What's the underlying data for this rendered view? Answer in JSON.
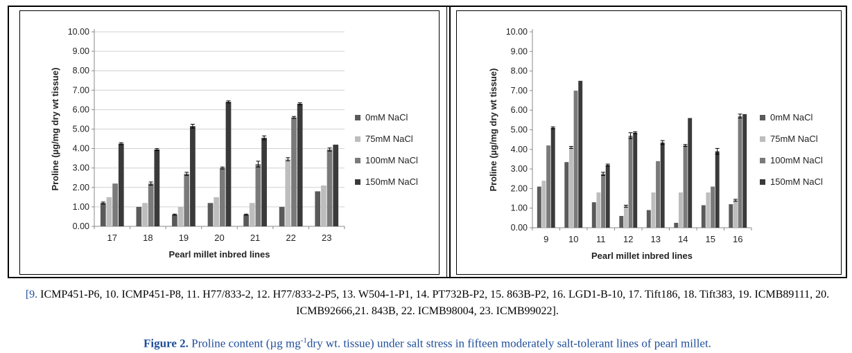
{
  "colors": {
    "s0": "#5a5a5a",
    "s75": "#bdbdbd",
    "s100": "#7a7a7a",
    "s150": "#3a3a3a",
    "axis_text": "#222222",
    "grid": "#d0d0d0",
    "caption_blue": "#1f4e9a"
  },
  "chart_data": [
    {
      "type": "bar",
      "categories": [
        "17",
        "18",
        "19",
        "20",
        "21",
        "22",
        "23"
      ],
      "ylabel": "Proline (µg/mg dry wt tissue)",
      "xlabel": "Pearl millet inbred lines",
      "ylim": [
        0,
        10
      ],
      "yticks": [
        "0.00",
        "1.00",
        "2.00",
        "3.00",
        "4.00",
        "5.00",
        "6.00",
        "7.00",
        "8.00",
        "9.00",
        "10.00"
      ],
      "grid": true,
      "legend_position": "right",
      "series": [
        {
          "name": "0mM NaCl",
          "values": [
            1.2,
            1.0,
            0.6,
            1.2,
            0.6,
            1.0,
            1.8
          ],
          "errors": [
            0.05,
            0,
            0.03,
            0,
            0.03,
            0,
            0
          ]
        },
        {
          "name": "75mM NaCl",
          "values": [
            1.5,
            1.2,
            1.0,
            1.5,
            1.2,
            3.45,
            2.1
          ],
          "errors": [
            0,
            0,
            0,
            0,
            0,
            0.08,
            0
          ]
        },
        {
          "name": "100mM NaCl",
          "values": [
            2.2,
            2.2,
            2.7,
            3.0,
            3.2,
            5.6,
            3.95
          ],
          "errors": [
            0,
            0.08,
            0.08,
            0.05,
            0.15,
            0.05,
            0.08
          ]
        },
        {
          "name": "150mM NaCl",
          "values": [
            4.25,
            3.95,
            5.15,
            6.4,
            4.55,
            6.3,
            4.2
          ],
          "errors": [
            0.05,
            0.05,
            0.1,
            0.05,
            0.1,
            0.05,
            0
          ]
        }
      ]
    },
    {
      "type": "bar",
      "categories": [
        "9",
        "10",
        "11",
        "12",
        "13",
        "14",
        "15",
        "16"
      ],
      "ylabel": "Proline (µg/mg dry wt tissue)",
      "xlabel": "Pearl millet inbred lines",
      "ylim": [
        0,
        10
      ],
      "yticks": [
        "0.00",
        "1.00",
        "2.00",
        "3.00",
        "4.00",
        "5.00",
        "6.00",
        "7.00",
        "8.00",
        "9.00",
        "10.00"
      ],
      "grid": false,
      "legend_position": "right",
      "series": [
        {
          "name": "0mM NaCl",
          "values": [
            2.1,
            3.35,
            1.3,
            0.6,
            0.9,
            0.25,
            1.15,
            1.2
          ],
          "errors": [
            0,
            0,
            0,
            0,
            0,
            0,
            0,
            0
          ]
        },
        {
          "name": "75mM NaCl",
          "values": [
            2.4,
            4.1,
            1.8,
            1.1,
            1.8,
            1.8,
            1.8,
            1.4
          ],
          "errors": [
            0,
            0.05,
            0,
            0.05,
            0,
            0,
            0,
            0.05
          ]
        },
        {
          "name": "100mM NaCl",
          "values": [
            4.2,
            7.0,
            2.75,
            4.7,
            3.4,
            4.2,
            2.1,
            5.7
          ],
          "errors": [
            0,
            0,
            0.08,
            0.15,
            0,
            0.05,
            0,
            0.1
          ]
        },
        {
          "name": "150mM NaCl",
          "values": [
            5.1,
            7.5,
            3.2,
            4.85,
            4.35,
            5.6,
            3.9,
            5.8
          ],
          "errors": [
            0.05,
            0,
            0.05,
            0.05,
            0.1,
            0,
            0.15,
            0
          ]
        }
      ]
    }
  ],
  "caption": {
    "lead": "[9.",
    "text": " ICMP451-P6, 10. ICMP451-P8, 11. H77/833-2, 12. H77/833-2-P5, 13. W504-1-P1, 14. PT732B-P2, 15. 863B-P2, 16. LGD1-B-10, 17. Tift186, 18. Tift383, 19. ICMB89111, 20. ICMB92666,21. 843B, 22. ICMB98004, 23. ICMB99022]."
  },
  "figure_title": {
    "label": "Figure 2.",
    "text_before_sup": " Proline content (µg mg",
    "sup": "-1",
    "text_after_sup": "dry wt. tissue) under salt stress in fifteen moderately salt-tolerant lines of pearl millet."
  }
}
